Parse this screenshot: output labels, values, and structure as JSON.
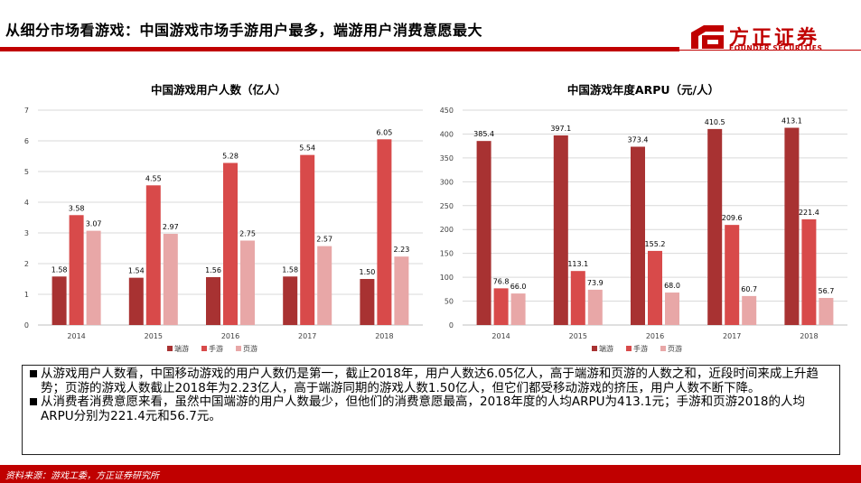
{
  "header": {
    "title": "从细分市场看游戏：中国游戏市场手游用户最多，端游用户消费意愿最大"
  },
  "logo": {
    "name_cn": "方正证券",
    "name_en": "FOUNDER SECURITIES",
    "brand_color": "#c00000"
  },
  "chart_data": [
    {
      "type": "bar",
      "title": "中国游戏用户人数（亿人）",
      "categories": [
        "2014",
        "2015",
        "2016",
        "2017",
        "2018"
      ],
      "series": [
        {
          "name": "端游",
          "color": "#a83232",
          "values": [
            1.58,
            1.54,
            1.56,
            1.58,
            1.5
          ],
          "labels": [
            "1.58",
            "1.54",
            "1.56",
            "1.58",
            "1.50"
          ]
        },
        {
          "name": "手游",
          "color": "#d84a4a",
          "values": [
            3.58,
            4.55,
            5.28,
            5.54,
            6.05
          ],
          "labels": [
            "3.58",
            "4.55",
            "5.28",
            "5.54",
            "6.05"
          ]
        },
        {
          "name": "页游",
          "color": "#e8a7a7",
          "values": [
            3.07,
            2.97,
            2.75,
            2.57,
            2.23
          ],
          "labels": [
            "3.07",
            "2.97",
            "2.75",
            "2.57",
            "2.23"
          ]
        }
      ],
      "ylim": [
        0,
        7
      ],
      "yticks": [
        0,
        1,
        2,
        3,
        4,
        5,
        6,
        7
      ],
      "ytick_labels": [
        "0",
        "1",
        "2",
        "3",
        "4",
        "5",
        "6",
        "7"
      ],
      "grid": true,
      "legend": "bottom"
    },
    {
      "type": "bar",
      "title": "中国游戏年度ARPU（元/人）",
      "categories": [
        "2014",
        "2015",
        "2016",
        "2017",
        "2018"
      ],
      "series": [
        {
          "name": "端游",
          "color": "#a83232",
          "values": [
            385.4,
            397.1,
            373.4,
            410.5,
            413.1
          ],
          "labels": [
            "385.4",
            "397.1",
            "373.4",
            "410.5",
            "413.1"
          ]
        },
        {
          "name": "手游",
          "color": "#d84a4a",
          "values": [
            76.8,
            113.1,
            155.2,
            209.6,
            221.4
          ],
          "labels": [
            "76.8",
            "113.1",
            "155.2",
            "209.6",
            "221.4"
          ]
        },
        {
          "name": "页游",
          "color": "#e8a7a7",
          "values": [
            66.0,
            73.9,
            68.0,
            60.7,
            56.7
          ],
          "labels": [
            "66.0",
            "73.9",
            "68.0",
            "60.7",
            "56.7"
          ]
        }
      ],
      "ylim": [
        0,
        450
      ],
      "yticks": [
        0,
        50,
        100,
        150,
        200,
        250,
        300,
        350,
        400,
        450
      ],
      "ytick_labels": [
        "0",
        "50",
        "100",
        "150",
        "200",
        "250",
        "300",
        "350",
        "400",
        "450"
      ],
      "grid": true,
      "legend": "bottom"
    }
  ],
  "notes": [
    "从游戏用户人数看，中国移动游戏的用户人数仍是第一，截止2018年，用户人数达6.05亿人，高于端游和页游的人数之和，近段时间来成上升趋势；页游的游戏人数截止2018年为2.23亿人，高于端游同期的游戏人数1.50亿人，但它们都受移动游戏的挤压，用户人数不断下降。",
    "从消费者消费意愿来看，虽然中国端游的用户人数最少，但他们的消费意愿最高，2018年度的人均ARPU为413.1元；手游和页游2018的人均ARPU分别为221.4元和56.7元。"
  ],
  "footer": {
    "source": "资料来源：游戏工委，方正证券研究所"
  }
}
